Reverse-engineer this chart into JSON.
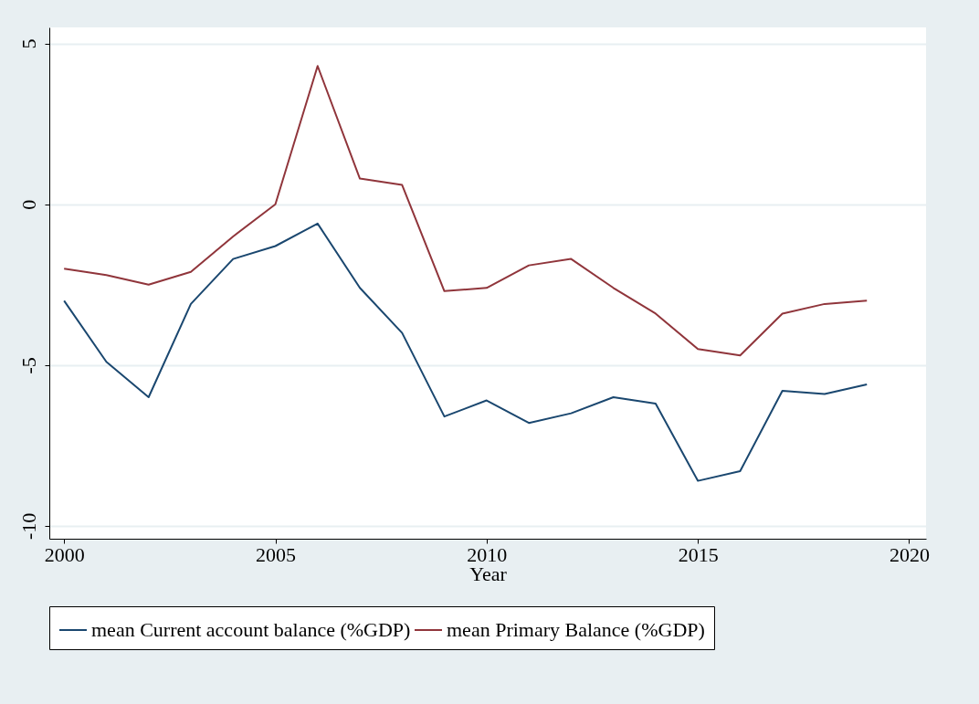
{
  "chart_data": {
    "type": "line",
    "xlabel": "Year",
    "x": [
      2000,
      2001,
      2002,
      2003,
      2004,
      2005,
      2006,
      2007,
      2008,
      2009,
      2010,
      2011,
      2012,
      2013,
      2014,
      2015,
      2016,
      2017,
      2018,
      2019
    ],
    "series": [
      {
        "name": "mean Current account balance (%GDP)",
        "color": "#1a476f",
        "values": [
          -3.0,
          -4.9,
          -6.0,
          -3.1,
          -1.7,
          -1.3,
          -0.6,
          -2.6,
          -4.0,
          -6.6,
          -6.1,
          -6.8,
          -6.5,
          -6.0,
          -6.2,
          -8.6,
          -8.3,
          -5.8,
          -5.9,
          -5.6
        ]
      },
      {
        "name": "mean Primary Balance (%GDP)",
        "color": "#90353b",
        "values": [
          -2.0,
          -2.2,
          -2.5,
          -2.1,
          -1.0,
          0.0,
          4.3,
          0.8,
          0.6,
          -2.7,
          -2.6,
          -1.9,
          -1.7,
          -2.6,
          -3.4,
          -4.5,
          -4.7,
          -3.4,
          -3.1,
          -3.0
        ]
      }
    ],
    "xlim": [
      1999.65,
      2020.4
    ],
    "xticks": [
      2000,
      2005,
      2010,
      2015,
      2020
    ],
    "ylim": [
      -10.4,
      5.5
    ],
    "yticks": [
      -10,
      -5,
      0,
      5
    ],
    "grid": "y",
    "legend": "bottom",
    "marker": "none",
    "line_style": "solid"
  }
}
